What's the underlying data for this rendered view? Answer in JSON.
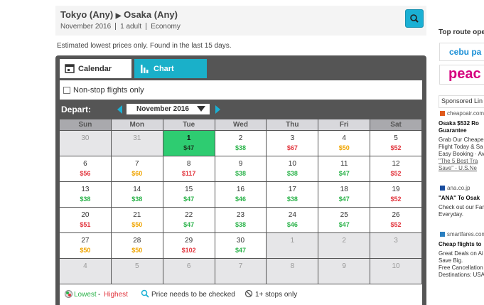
{
  "header": {
    "origin": "Tokyo (Any)",
    "destination": "Osaka (Any)",
    "month": "November 2016",
    "passengers": "1 adult",
    "cabin": "Economy"
  },
  "note": "Estimated lowest prices only. Found in the last 15 days.",
  "tabs": [
    "Calendar",
    "Chart"
  ],
  "nonstop_label": "Non-stop flights only",
  "depart_label": "Depart:",
  "month_select": "November 2016",
  "calendar": {
    "weekdays": [
      "Sun",
      "Mon",
      "Tue",
      "Wed",
      "Thu",
      "Fri",
      "Sat"
    ],
    "weeks": [
      [
        {
          "day": "30"
        },
        {
          "day": "31"
        },
        {
          "day": "1",
          "price": "$47",
          "color": "#1e8a3c",
          "selected": true
        },
        {
          "day": "2",
          "price": "$38",
          "color": "#2bb34a"
        },
        {
          "day": "3",
          "price": "$67",
          "color": "#e2373f"
        },
        {
          "day": "4",
          "price": "$50",
          "color": "#f0a500"
        },
        {
          "day": "5",
          "price": "$52",
          "color": "#e2373f"
        }
      ],
      [
        {
          "day": "6",
          "price": "$56",
          "color": "#e2373f"
        },
        {
          "day": "7",
          "price": "$60",
          "color": "#f0a500"
        },
        {
          "day": "8",
          "price": "$117",
          "color": "#e2373f"
        },
        {
          "day": "9",
          "price": "$38",
          "color": "#2bb34a"
        },
        {
          "day": "10",
          "price": "$38",
          "color": "#2bb34a"
        },
        {
          "day": "11",
          "price": "$47",
          "color": "#2bb34a"
        },
        {
          "day": "12",
          "price": "$52",
          "color": "#e2373f"
        }
      ],
      [
        {
          "day": "13",
          "price": "$38",
          "color": "#2bb34a"
        },
        {
          "day": "14",
          "price": "$38",
          "color": "#2bb34a"
        },
        {
          "day": "15",
          "price": "$47",
          "color": "#2bb34a"
        },
        {
          "day": "16",
          "price": "$46",
          "color": "#2bb34a"
        },
        {
          "day": "17",
          "price": "$38",
          "color": "#2bb34a"
        },
        {
          "day": "18",
          "price": "$47",
          "color": "#2bb34a"
        },
        {
          "day": "19",
          "price": "$52",
          "color": "#e2373f"
        }
      ],
      [
        {
          "day": "20",
          "price": "$51",
          "color": "#e2373f"
        },
        {
          "day": "21",
          "price": "$50",
          "color": "#f0a500"
        },
        {
          "day": "22",
          "price": "$47",
          "color": "#2bb34a"
        },
        {
          "day": "23",
          "price": "$38",
          "color": "#2bb34a"
        },
        {
          "day": "24",
          "price": "$46",
          "color": "#2bb34a"
        },
        {
          "day": "25",
          "price": "$47",
          "color": "#2bb34a"
        },
        {
          "day": "26",
          "price": "$52",
          "color": "#e2373f"
        }
      ],
      [
        {
          "day": "27",
          "price": "$50",
          "color": "#f0a500"
        },
        {
          "day": "28",
          "price": "$50",
          "color": "#f0a500"
        },
        {
          "day": "29",
          "price": "$102",
          "color": "#e2373f"
        },
        {
          "day": "30",
          "price": "$47",
          "color": "#2bb34a"
        },
        {
          "day": "1"
        },
        {
          "day": "2"
        },
        {
          "day": "3"
        }
      ],
      [
        {
          "day": "4"
        },
        {
          "day": "5"
        },
        {
          "day": "6"
        },
        {
          "day": "7"
        },
        {
          "day": "8"
        },
        {
          "day": "9"
        },
        {
          "day": "10"
        }
      ]
    ]
  },
  "legend": {
    "lowest": "Lowest",
    "dash": "-",
    "highest": "Highest",
    "check": "Price needs to be checked",
    "stops": "1+ stops only"
  },
  "sidebar": {
    "title": "Top route ope",
    "logos": [
      "cebu pa",
      "peac"
    ],
    "sponsored": "Sponsored Lin",
    "ads": [
      {
        "domain": "cheapoair.com",
        "title": [
          "Osaka $532 Ro",
          "Guarantee"
        ],
        "text": [
          "Grab Our Cheape",
          "Flight Today & Sa",
          "Easy Booking · Av"
        ],
        "quote": [
          "\"The 5 Best Tra",
          "Save\" - U.S.Ne"
        ]
      },
      {
        "domain": "ana.co.jp",
        "title": [
          "\"ANA\" To Osak"
        ],
        "text": [
          "Check out our Far",
          "Everyday."
        ],
        "quote": []
      },
      {
        "domain": "smartfares.com",
        "title": [
          "Cheap flights to"
        ],
        "text": [
          "Great Deals on Ai",
          "Save Big.",
          "Free Cancellation",
          "Destinations: USA"
        ],
        "quote": []
      }
    ]
  }
}
